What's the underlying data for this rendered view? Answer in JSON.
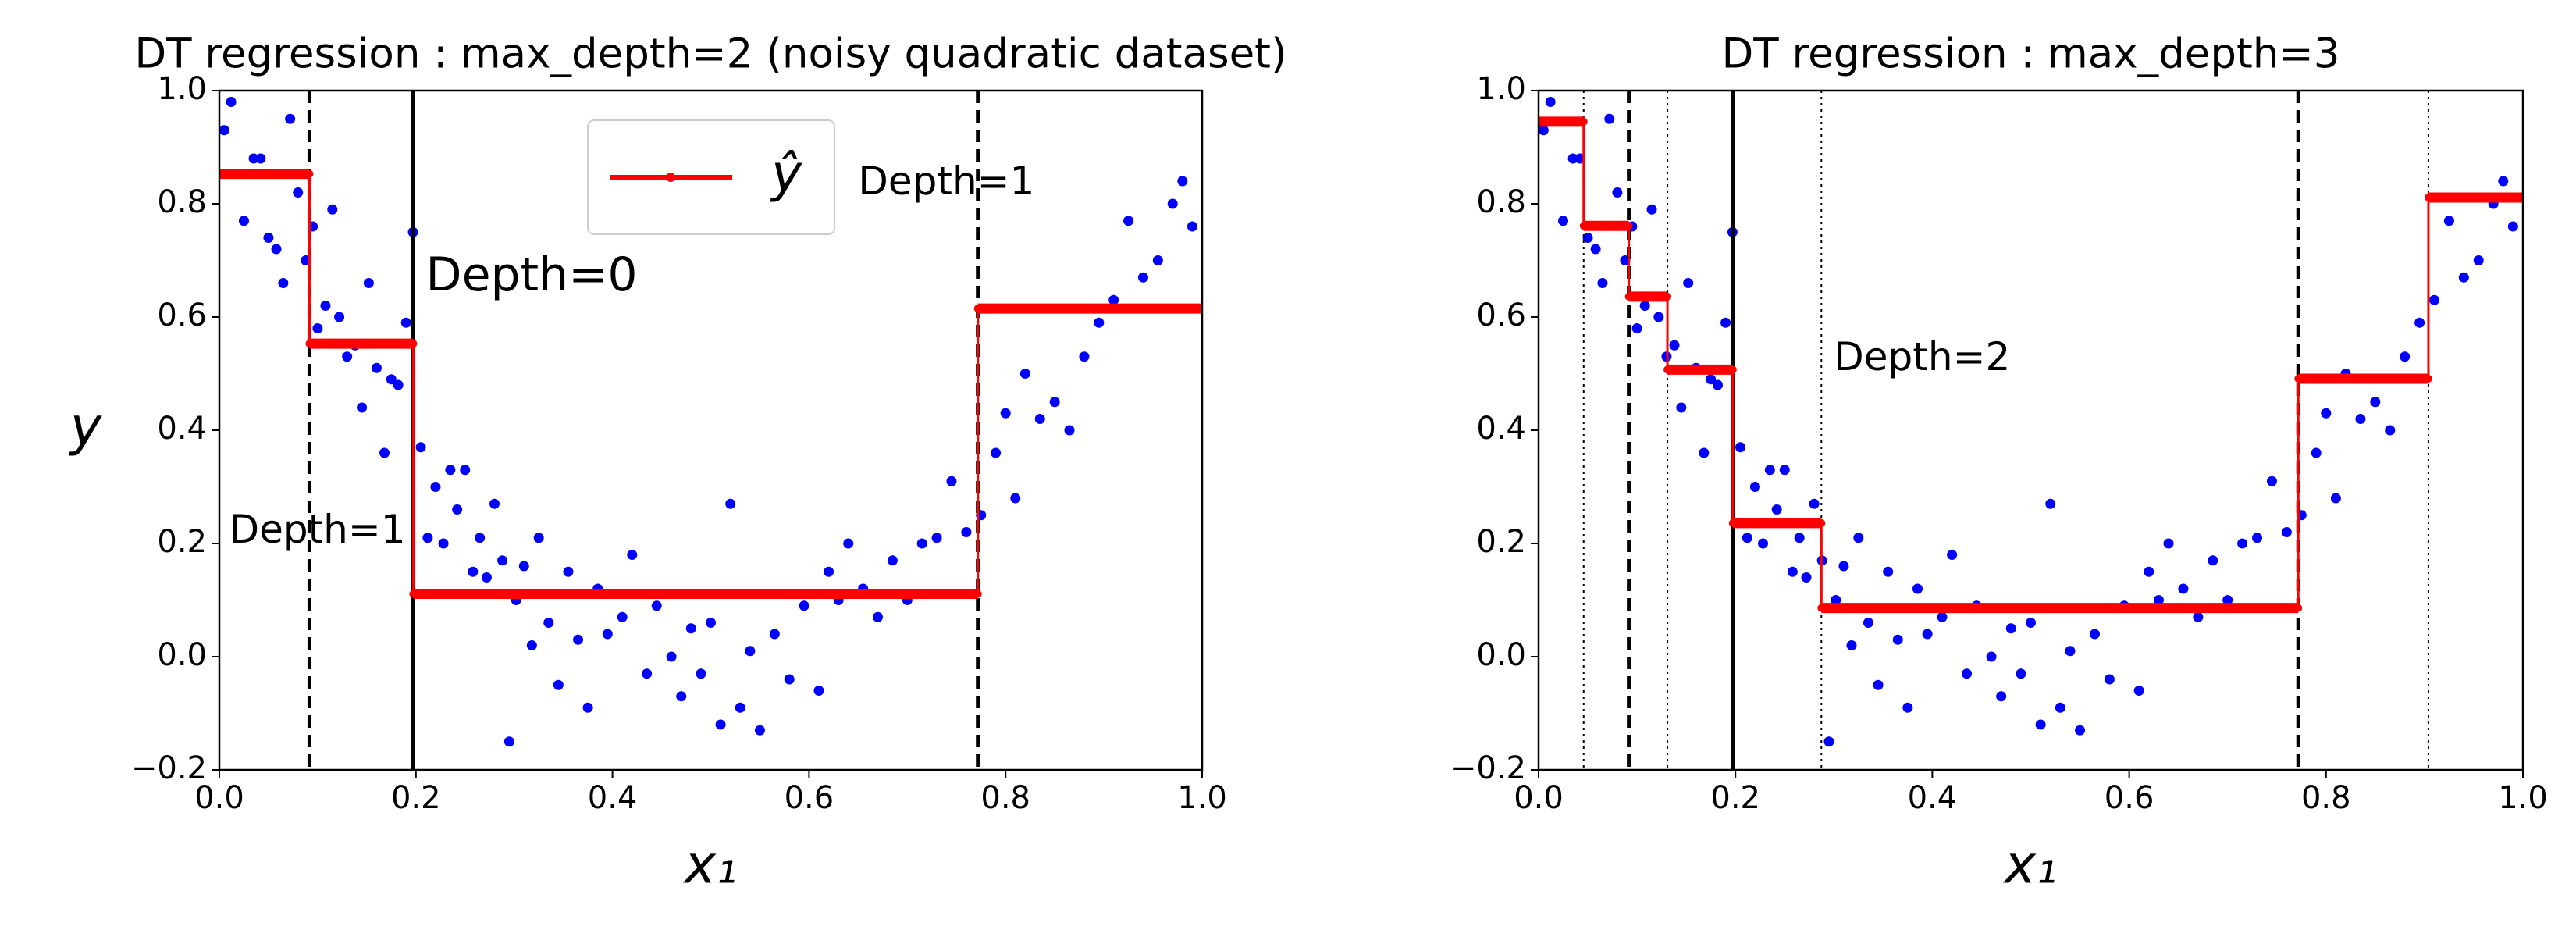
{
  "chart_data": [
    {
      "type": "scatter",
      "title": "DT regression : max_depth=2 (noisy quadratic dataset)",
      "x_label": "x₁",
      "y_label": "y",
      "xlim": [
        0,
        1
      ],
      "ylim": [
        -0.2,
        1
      ],
      "xticks": [
        {
          "value": 0,
          "label": "0.0"
        },
        0.2,
        0.4,
        0.6,
        0.8,
        {
          "value": 1,
          "label": "1.0"
        }
      ],
      "yticks": [
        {
          "value": -0.2,
          "label": "−0.2"
        },
        {
          "value": 0,
          "label": "0.0"
        },
        0.2,
        0.4,
        0.6,
        0.8,
        {
          "value": 1,
          "label": "1.0"
        }
      ],
      "legend": "upper center",
      "splits": [
        {
          "x": 0.1973,
          "style": "solid"
        },
        {
          "x": 0.0917,
          "style": "dashed"
        },
        {
          "x": 0.7718,
          "style": "dashed"
        }
      ],
      "annotations": [
        "Depth=0",
        "Depth=1",
        "Depth=1"
      ],
      "series": [
        {
          "type": "scatter",
          "color": "#0000ff",
          "x": [
            0.005,
            0.012,
            0.025,
            0.035,
            0.042,
            0.05,
            0.058,
            0.065,
            0.072,
            0.08,
            0.088,
            0.095,
            0.1,
            0.108,
            0.115,
            0.122,
            0.13,
            0.138,
            0.145,
            0.152,
            0.16,
            0.168,
            0.175,
            0.182,
            0.19,
            0.197,
            0.205,
            0.212,
            0.22,
            0.228,
            0.235,
            0.242,
            0.25,
            0.258,
            0.265,
            0.272,
            0.28,
            0.288,
            0.295,
            0.302,
            0.31,
            0.318,
            0.325,
            0.335,
            0.345,
            0.355,
            0.365,
            0.375,
            0.385,
            0.395,
            0.41,
            0.42,
            0.435,
            0.445,
            0.46,
            0.47,
            0.48,
            0.49,
            0.5,
            0.51,
            0.52,
            0.53,
            0.54,
            0.55,
            0.565,
            0.58,
            0.595,
            0.61,
            0.62,
            0.63,
            0.64,
            0.655,
            0.67,
            0.685,
            0.7,
            0.715,
            0.73,
            0.745,
            0.76,
            0.775,
            0.79,
            0.8,
            0.81,
            0.82,
            0.835,
            0.85,
            0.865,
            0.88,
            0.895,
            0.91,
            0.925,
            0.94,
            0.955,
            0.97,
            0.98,
            0.99
          ],
          "values": [
            0.93,
            0.98,
            0.77,
            0.88,
            0.88,
            0.74,
            0.72,
            0.66,
            0.95,
            0.82,
            0.7,
            0.76,
            0.58,
            0.62,
            0.79,
            0.6,
            0.53,
            0.55,
            0.44,
            0.66,
            0.51,
            0.36,
            0.49,
            0.48,
            0.59,
            0.75,
            0.37,
            0.21,
            0.3,
            0.2,
            0.33,
            0.26,
            0.33,
            0.15,
            0.21,
            0.14,
            0.27,
            0.17,
            -0.15,
            0.1,
            0.16,
            0.02,
            0.21,
            0.06,
            -0.05,
            0.15,
            0.03,
            -0.09,
            0.12,
            0.04,
            0.07,
            0.18,
            -0.03,
            0.09,
            0,
            -0.07,
            0.05,
            -0.03,
            0.06,
            -0.12,
            0.27,
            -0.09,
            0.01,
            -0.13,
            0.04,
            -0.04,
            0.09,
            -0.06,
            0.15,
            0.1,
            0.2,
            0.12,
            0.07,
            0.17,
            0.1,
            0.2,
            0.21,
            0.31,
            0.22,
            0.25,
            0.36,
            0.43,
            0.28,
            0.5,
            0.42,
            0.45,
            0.4,
            0.53,
            0.59,
            0.63,
            0.77,
            0.67,
            0.7,
            0.8,
            0.84,
            0.76
          ]
        },
        {
          "type": "step",
          "name": "ŷ",
          "color": "#ff0000",
          "bins": [
            0,
            0.0917,
            0.1973,
            0.7718,
            1
          ],
          "values": [
            0.853,
            0.553,
            0.111,
            0.615
          ]
        }
      ]
    },
    {
      "type": "scatter",
      "title": "DT regression : max_depth=3",
      "x_label": "x₁",
      "xlim": [
        0,
        1
      ],
      "ylim": [
        -0.2,
        1
      ],
      "xticks": [
        {
          "value": 0,
          "label": "0.0"
        },
        0.2,
        0.4,
        0.6,
        0.8,
        {
          "value": 1,
          "label": "1.0"
        }
      ],
      "yticks": [
        {
          "value": -0.2,
          "label": "−0.2"
        },
        {
          "value": 0,
          "label": "0.0"
        },
        0.2,
        0.4,
        0.6,
        0.8,
        {
          "value": 1,
          "label": "1.0"
        }
      ],
      "splits": [
        {
          "x": 0.1973,
          "style": "solid"
        },
        {
          "x": 0.0917,
          "style": "dashed"
        },
        {
          "x": 0.7718,
          "style": "dashed"
        },
        {
          "x": 0.0458,
          "style": "dotted"
        },
        {
          "x": 0.1309,
          "style": "dotted"
        },
        {
          "x": 0.2873,
          "style": "dotted"
        },
        {
          "x": 0.904,
          "style": "dotted"
        }
      ],
      "annotations": [
        "Depth=2"
      ],
      "series": [
        {
          "type": "scatter",
          "color": "#0000ff",
          "x": [
            0.005,
            0.012,
            0.025,
            0.035,
            0.042,
            0.05,
            0.058,
            0.065,
            0.072,
            0.08,
            0.088,
            0.095,
            0.1,
            0.108,
            0.115,
            0.122,
            0.13,
            0.138,
            0.145,
            0.152,
            0.16,
            0.168,
            0.175,
            0.182,
            0.19,
            0.197,
            0.205,
            0.212,
            0.22,
            0.228,
            0.235,
            0.242,
            0.25,
            0.258,
            0.265,
            0.272,
            0.28,
            0.288,
            0.295,
            0.302,
            0.31,
            0.318,
            0.325,
            0.335,
            0.345,
            0.355,
            0.365,
            0.375,
            0.385,
            0.395,
            0.41,
            0.42,
            0.435,
            0.445,
            0.46,
            0.47,
            0.48,
            0.49,
            0.5,
            0.51,
            0.52,
            0.53,
            0.54,
            0.55,
            0.565,
            0.58,
            0.595,
            0.61,
            0.62,
            0.63,
            0.64,
            0.655,
            0.67,
            0.685,
            0.7,
            0.715,
            0.73,
            0.745,
            0.76,
            0.775,
            0.79,
            0.8,
            0.81,
            0.82,
            0.835,
            0.85,
            0.865,
            0.88,
            0.895,
            0.91,
            0.925,
            0.94,
            0.955,
            0.97,
            0.98,
            0.99
          ],
          "values": [
            0.93,
            0.98,
            0.77,
            0.88,
            0.88,
            0.74,
            0.72,
            0.66,
            0.95,
            0.82,
            0.7,
            0.76,
            0.58,
            0.62,
            0.79,
            0.6,
            0.53,
            0.55,
            0.44,
            0.66,
            0.51,
            0.36,
            0.49,
            0.48,
            0.59,
            0.75,
            0.37,
            0.21,
            0.3,
            0.2,
            0.33,
            0.26,
            0.33,
            0.15,
            0.21,
            0.14,
            0.27,
            0.17,
            -0.15,
            0.1,
            0.16,
            0.02,
            0.21,
            0.06,
            -0.05,
            0.15,
            0.03,
            -0.09,
            0.12,
            0.04,
            0.07,
            0.18,
            -0.03,
            0.09,
            0,
            -0.07,
            0.05,
            -0.03,
            0.06,
            -0.12,
            0.27,
            -0.09,
            0.01,
            -0.13,
            0.04,
            -0.04,
            0.09,
            -0.06,
            0.15,
            0.1,
            0.2,
            0.12,
            0.07,
            0.17,
            0.1,
            0.2,
            0.21,
            0.31,
            0.22,
            0.25,
            0.36,
            0.43,
            0.28,
            0.5,
            0.42,
            0.45,
            0.4,
            0.53,
            0.59,
            0.63,
            0.77,
            0.67,
            0.7,
            0.8,
            0.84,
            0.76
          ]
        },
        {
          "type": "step",
          "color": "#ff0000",
          "bins": [
            0,
            0.0458,
            0.0917,
            0.1309,
            0.1973,
            0.2873,
            0.7718,
            0.904,
            1
          ],
          "values": [
            0.945,
            0.761,
            0.636,
            0.507,
            0.236,
            0.086,
            0.491,
            0.811
          ]
        }
      ]
    }
  ]
}
